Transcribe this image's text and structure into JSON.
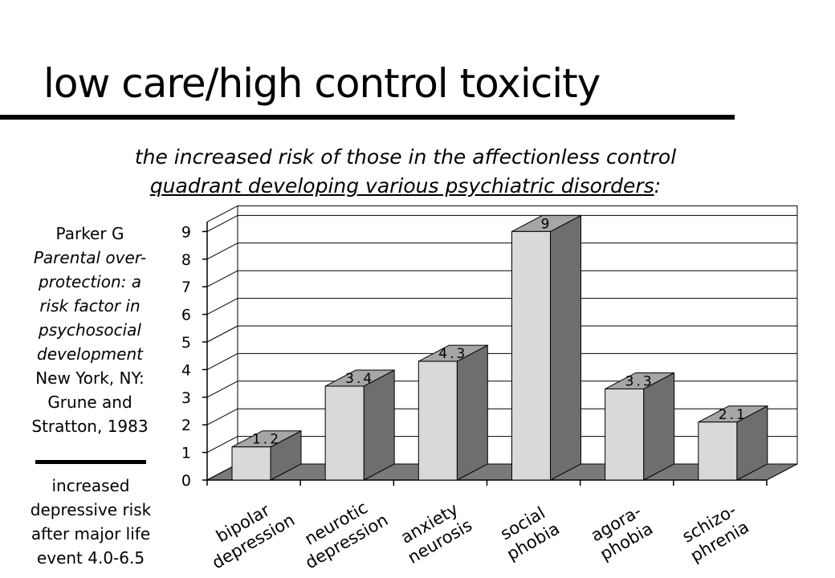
{
  "slide": {
    "title": "low care/high control toxicity",
    "subtitle_line1": "the increased risk of those in the affectionless control",
    "subtitle_line2": "quadrant developing various psychiatric disorders",
    "subtitle_line2_suffix": ":"
  },
  "citation": {
    "author": "Parker G",
    "title_lines": [
      "Parental over-",
      "protection: a",
      "risk factor in",
      "psychosocial",
      "development"
    ],
    "publisher_lines": [
      "New York, NY:",
      "Grune and",
      "Stratton, 1983"
    ]
  },
  "risk_note": {
    "lines": [
      "increased",
      "depressive risk",
      "after major life",
      "event 4.0-6.5"
    ]
  },
  "chart_data": {
    "type": "bar",
    "categories": [
      [
        "bipolar",
        "depression"
      ],
      [
        "neurotic",
        "depression"
      ],
      [
        "anxiety",
        "neurosis"
      ],
      [
        "social",
        "phobia"
      ],
      [
        "agora-",
        "phobia"
      ],
      [
        "schizo-",
        "phrenia"
      ]
    ],
    "values": [
      1.2,
      3.4,
      4.3,
      9,
      3.3,
      2.1
    ],
    "data_labels": [
      "1.2",
      "3.4",
      "4.3",
      "9",
      "3.3",
      "2.1"
    ],
    "y_ticks": [
      "0",
      "1",
      "2",
      "3",
      "4",
      "5",
      "6",
      "7",
      "8",
      "9"
    ],
    "ylim": [
      0,
      9
    ],
    "grid": true,
    "style": "3d",
    "colors": {
      "bar_front": "#d9d9d9",
      "bar_side": "#6e6e6e",
      "bar_top": "#a6a6a6",
      "floor": "#7a7a7a",
      "grid": "#000000"
    }
  }
}
